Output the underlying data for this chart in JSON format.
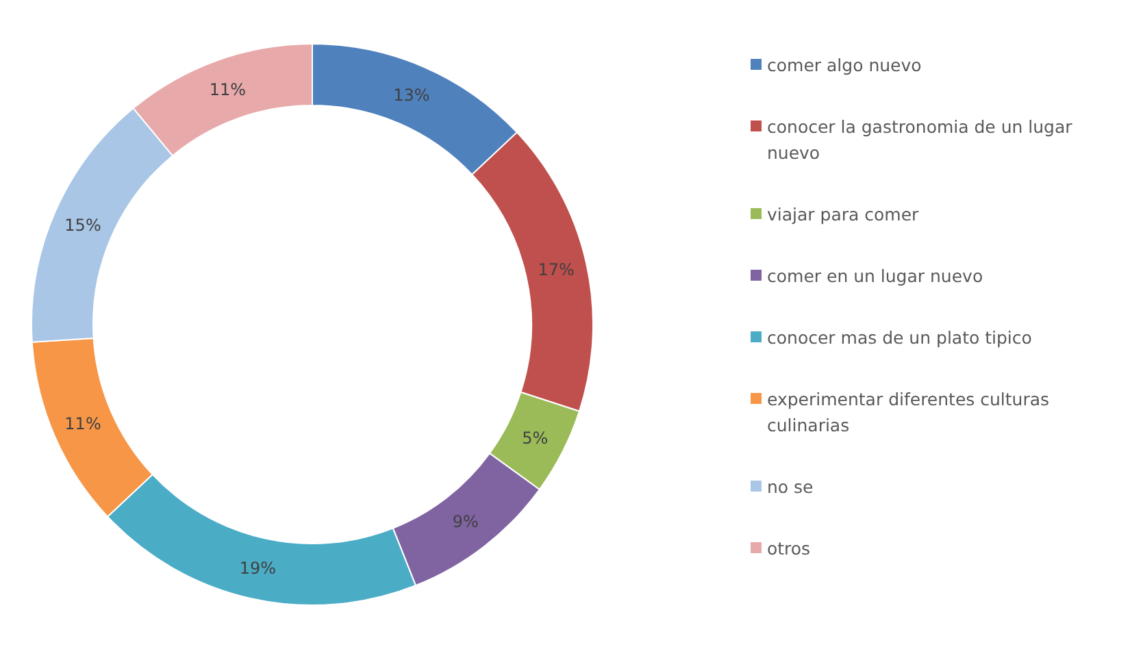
{
  "chart_data": {
    "type": "donut",
    "categories": [
      "comer algo nuevo",
      "conocer la gastronomia de un lugar nuevo",
      "viajar para comer",
      "comer en un lugar nuevo",
      "conocer mas de un plato tipico",
      "experimentar diferentes culturas culinarias",
      "no se",
      "otros"
    ],
    "values": [
      13,
      17,
      5,
      9,
      19,
      11,
      15,
      11
    ],
    "value_labels": [
      "13%",
      "17%",
      "5%",
      "9%",
      "19%",
      "11%",
      "15%",
      "11%"
    ],
    "colors": [
      "#4f81bd",
      "#c0504d",
      "#9bbb59",
      "#8064a2",
      "#4bacc6",
      "#f79646",
      "#a9c6e6",
      "#e8a9ab"
    ],
    "legend": "right"
  }
}
